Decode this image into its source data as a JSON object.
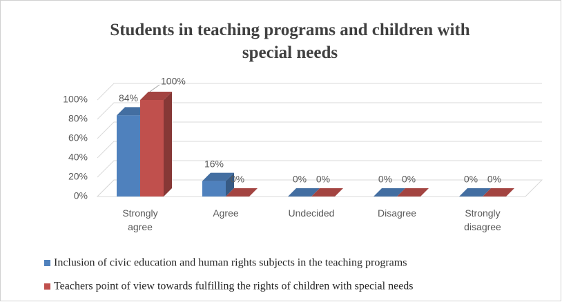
{
  "chart_data": {
    "type": "bar3d",
    "title": "Students in teaching programs and children with special needs",
    "categories": [
      "Strongly agree",
      "Agree",
      "Undecided",
      "Disagree",
      "Strongly disagree"
    ],
    "series": [
      {
        "name": "Inclusion of civic education and human rights subjects in the teaching programs",
        "color": "#4f81bd",
        "values": [
          84,
          16,
          0,
          0,
          0
        ],
        "value_labels": [
          "84%",
          "16%",
          "0%",
          "0%",
          "0%"
        ]
      },
      {
        "name": "Teachers point of view towards fulfilling the rights of children with special needs",
        "color": "#c0504d",
        "values": [
          100,
          0,
          0,
          0,
          0
        ],
        "value_labels": [
          "100%",
          "0%",
          "0%",
          "0%",
          "0%"
        ]
      }
    ],
    "ylim": [
      0,
      100
    ],
    "yticks": [
      {
        "value": 0,
        "label": "0%"
      },
      {
        "value": 20,
        "label": "20%"
      },
      {
        "value": 40,
        "label": "40%"
      },
      {
        "value": 60,
        "label": "60%"
      },
      {
        "value": 80,
        "label": "80%"
      },
      {
        "value": 100,
        "label": "100%"
      }
    ],
    "grid": true,
    "legend": "bottom"
  }
}
